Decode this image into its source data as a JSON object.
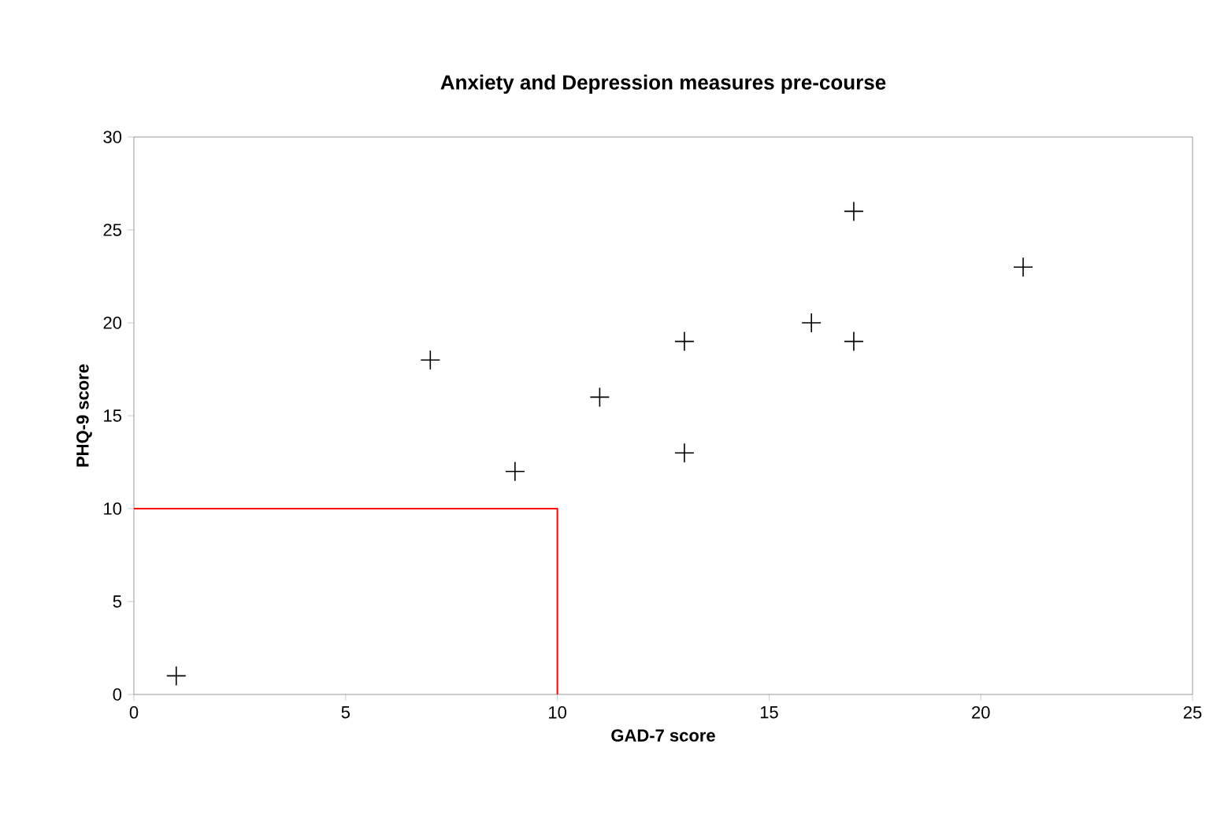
{
  "chart_data": {
    "type": "scatter",
    "title": "Anxiety and Depression measures pre-course",
    "xlabel": "GAD-7 score",
    "ylabel": "PHQ-9 score",
    "xlim": [
      0,
      25
    ],
    "xticks": [
      0,
      5,
      10,
      15,
      20,
      25
    ],
    "ylim": [
      0,
      30
    ],
    "yticks": [
      0,
      5,
      10,
      15,
      20,
      25,
      30
    ],
    "grid": false,
    "series": [
      {
        "marker": "cross",
        "color": "#000000",
        "x": [
          1,
          7,
          9,
          11,
          13,
          13,
          16,
          17,
          17,
          21
        ],
        "values": [
          1,
          18,
          12,
          16,
          19,
          13,
          20,
          26,
          19,
          23
        ]
      },
      {
        "type": "line",
        "marker": "none",
        "color": "#ff0000",
        "line_style": "solid",
        "x": [
          0,
          10,
          10
        ],
        "values": [
          10,
          10,
          0
        ]
      }
    ]
  }
}
